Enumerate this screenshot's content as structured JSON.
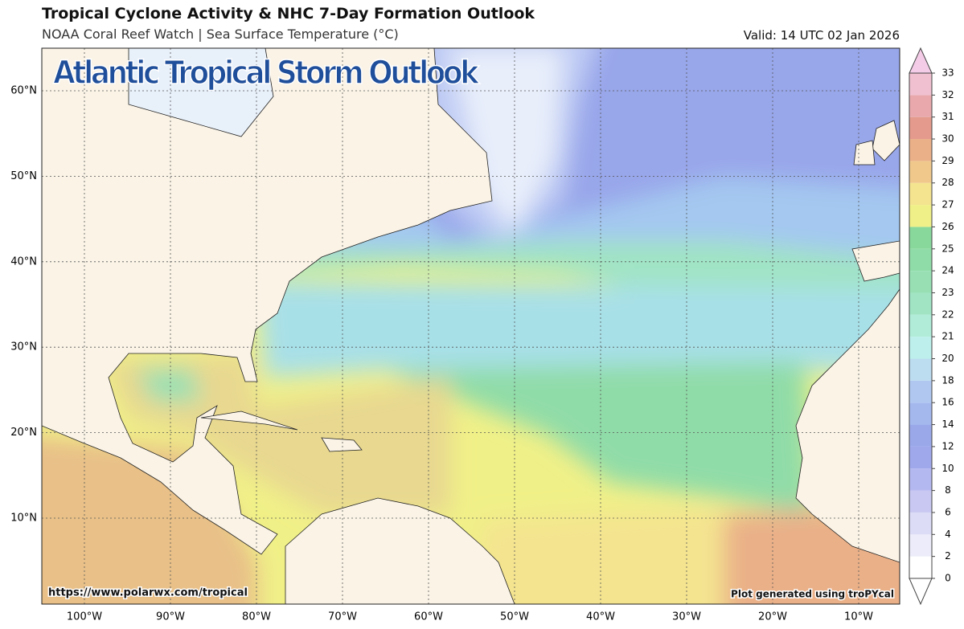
{
  "header": {
    "title": "Tropical Cyclone Activity & NHC 7-Day Formation Outlook",
    "subtitle": "NOAA Coral Reef Watch | Sea Surface Temperature (°C)",
    "valid": "Valid: 14 UTC 02 Jan 2026"
  },
  "map": {
    "overlay_title": "Atlantic Tropical Storm Outlook",
    "lon_labels": [
      "100°W",
      "90°W",
      "80°W",
      "70°W",
      "60°W",
      "50°W",
      "40°W",
      "30°W",
      "20°W",
      "10°W"
    ],
    "lat_labels": [
      "60°N",
      "50°N",
      "40°N",
      "30°N",
      "20°N",
      "10°N"
    ],
    "source_url": "https://www.polarwx.com/tropical",
    "credit": "Plot generated using troPYcal"
  },
  "colorbar": {
    "ticks": [
      0,
      2,
      4,
      6,
      8,
      10,
      12,
      14,
      16,
      18,
      20,
      21,
      22,
      23,
      24,
      25,
      26,
      27,
      28,
      29,
      30,
      31,
      32,
      33
    ],
    "colors": [
      "#ffffff",
      "#ececfa",
      "#dcdcf6",
      "#c8c8f2",
      "#b4b8f0",
      "#a0a8ec",
      "#9aa8ea",
      "#a4b8ee",
      "#b0c8f0",
      "#bcdcf0",
      "#bdf0ec",
      "#b0ecd8",
      "#a0e4c4",
      "#98e0b4",
      "#90dca8",
      "#88d89c",
      "#f0f088",
      "#f4e490",
      "#f0c88c",
      "#eab088",
      "#e49a8c",
      "#e8a8ac",
      "#f0c0d0"
    ],
    "over_color": "#f4cce8",
    "under_color": "#ffffff"
  }
}
